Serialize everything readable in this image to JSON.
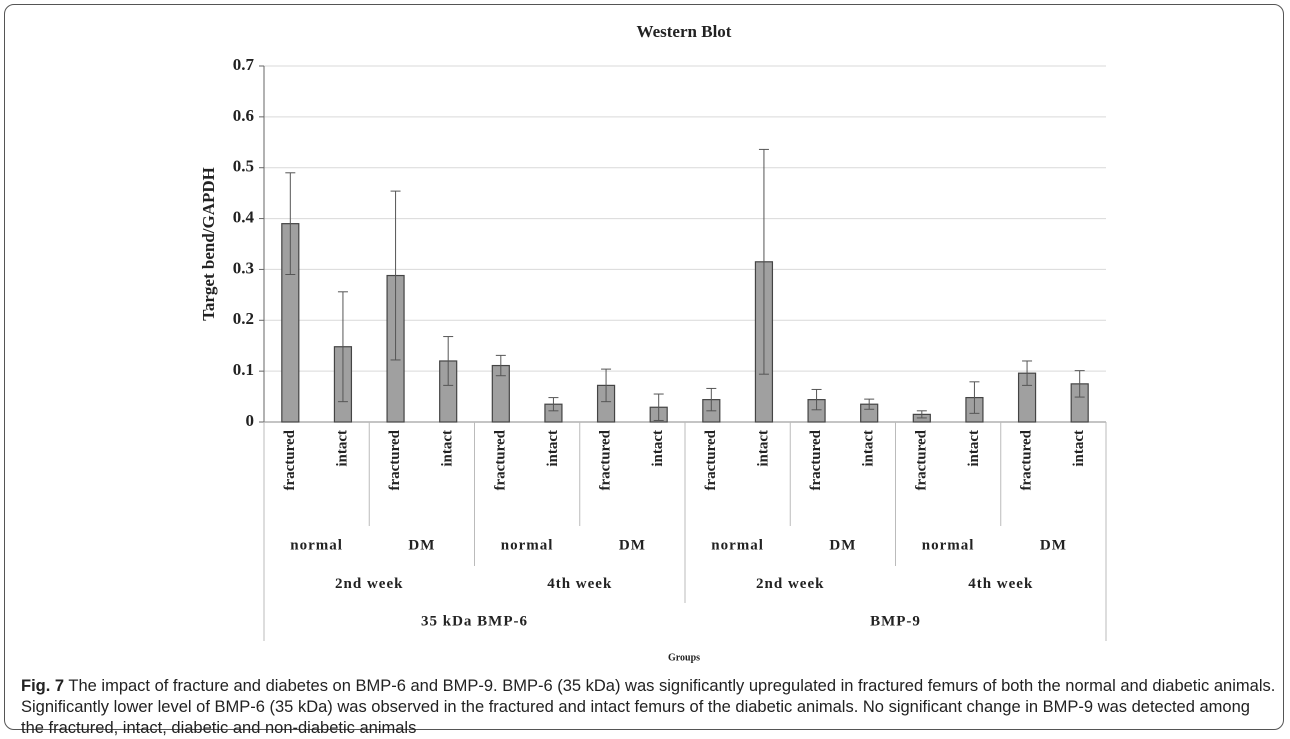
{
  "chart_data": {
    "type": "bar",
    "title": "Western Blot",
    "x_label": "Groups",
    "y_label": "Target bend/GAPDH",
    "categories": [
      "fractured",
      "intact",
      "fractured",
      "intact",
      "fractured",
      "intact",
      "fractured",
      "intact",
      "fractured",
      "intact",
      "fractured",
      "intact",
      "fractured",
      "intact",
      "fractured",
      "intact"
    ],
    "categories_level2": [
      "normal",
      "DM",
      "normal",
      "DM",
      "normal",
      "DM",
      "normal",
      "DM"
    ],
    "categories_level3": [
      "2nd week",
      "4th week",
      "2nd week",
      "4th week"
    ],
    "categories_level4": [
      "35 kDa BMP-6",
      "BMP-9"
    ],
    "values": [
      0.39,
      0.148,
      0.288,
      0.12,
      0.111,
      0.035,
      0.072,
      0.029,
      0.044,
      0.315,
      0.044,
      0.035,
      0.015,
      0.048,
      0.096,
      0.075
    ],
    "errors": [
      0.1,
      0.108,
      0.166,
      0.048,
      0.02,
      0.013,
      0.032,
      0.026,
      0.022,
      0.221,
      0.02,
      0.01,
      0.007,
      0.031,
      0.024,
      0.026
    ],
    "color": "#a0a0a0",
    "ylim": [
      0,
      0.7
    ],
    "yticks": [
      0,
      0.1,
      0.2,
      0.3,
      0.4,
      0.5,
      0.6,
      0.7
    ],
    "grid": true
  },
  "caption": {
    "label": "Fig. 7",
    "text": "The impact of fracture and diabetes on BMP-6 and BMP-9. BMP-6 (35 kDa) was significantly upregulated in fractured femurs of both the normal and diabetic animals. Significantly lower level of BMP-6 (35 kDa) was observed in the fractured and intact femurs of the diabetic animals. No significant change in BMP-9 was detected among the fractured, intact, diabetic and non-diabetic animals"
  }
}
